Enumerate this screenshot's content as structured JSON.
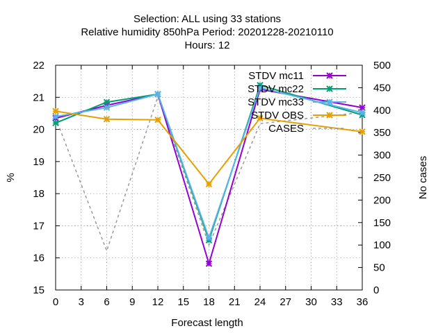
{
  "chart_data": {
    "type": "line",
    "title_lines": [
      "Selection: ALL using    33 stations",
      "Relative humidity 850hPa   Period: 20201228-20210110",
      "Hours:  12"
    ],
    "xlabel": "Forecast length",
    "ylabel": "%",
    "y2label": "No cases",
    "xlim": [
      0,
      36
    ],
    "ylim": [
      15,
      22
    ],
    "y2lim": [
      0,
      500
    ],
    "xticks": [
      "0",
      "3",
      "6",
      "9",
      "12",
      "15",
      "18",
      "21",
      "24",
      "27",
      "30",
      "33",
      "36"
    ],
    "yticks": [
      "15",
      "16",
      "17",
      "18",
      "19",
      "20",
      "21",
      "22"
    ],
    "y2ticks": [
      "0",
      "50",
      "100",
      "150",
      "200",
      "250",
      "300",
      "350",
      "400",
      "450",
      "500"
    ],
    "grid": true,
    "legend_position": "top-right",
    "x": [
      0,
      6,
      12,
      18,
      24,
      36
    ],
    "series": [
      {
        "name": "STDV mc11",
        "color": "#9400d3",
        "marker": "x",
        "axis": "y1",
        "values": [
          20.35,
          20.75,
          21.1,
          15.82,
          21.25,
          20.68
        ]
      },
      {
        "name": "STDV mc22",
        "color": "#009e73",
        "marker": "x",
        "axis": "y1",
        "values": [
          20.2,
          20.85,
          21.1,
          16.55,
          21.38,
          20.45
        ]
      },
      {
        "name": "STDV mc33",
        "color": "#56b4e9",
        "marker": "x",
        "axis": "y1",
        "values": [
          20.4,
          20.68,
          21.1,
          16.62,
          21.3,
          20.52
        ]
      },
      {
        "name": "STDV OBS",
        "color": "#e69f00",
        "marker": "x",
        "axis": "y1",
        "values": [
          20.57,
          20.32,
          20.3,
          18.3,
          20.35,
          19.93
        ]
      },
      {
        "name": "CASES",
        "color": "#999999",
        "marker": "none",
        "axis": "y2",
        "dashed": true,
        "values": [
          383,
          87,
          430,
          100,
          370,
          395
        ]
      }
    ]
  }
}
